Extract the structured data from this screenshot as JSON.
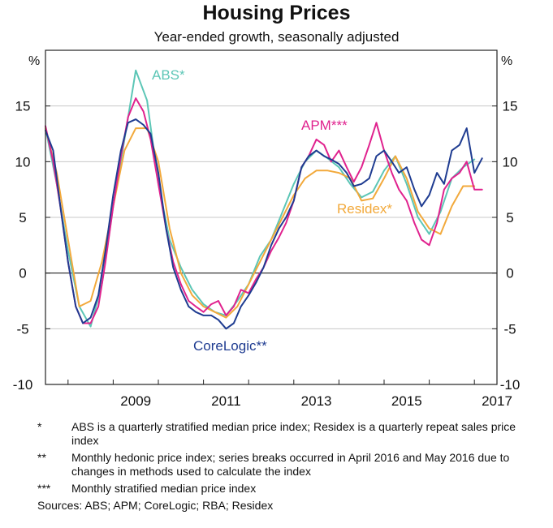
{
  "chart_data": {
    "type": "line",
    "title": "Housing Prices",
    "subtitle": "Year-ended growth, seasonally adjusted",
    "ylabel_left": "%",
    "ylabel_right": "%",
    "ylim": [
      -10,
      20
    ],
    "yticks": [
      -10,
      -5,
      0,
      5,
      10,
      15
    ],
    "xlim": [
      2007.5,
      2017.5
    ],
    "xticks": [
      "2009",
      "2011",
      "2013",
      "2015",
      "2017"
    ],
    "grid": true,
    "series": [
      {
        "name": "ABS*",
        "color": "#5cc6b6",
        "x": [
          2007.5,
          2007.75,
          2008.0,
          2008.25,
          2008.5,
          2008.75,
          2009.0,
          2009.25,
          2009.5,
          2009.75,
          2010.0,
          2010.25,
          2010.5,
          2010.75,
          2011.0,
          2011.25,
          2011.5,
          2011.75,
          2012.0,
          2012.25,
          2012.5,
          2012.75,
          2013.0,
          2013.25,
          2013.5,
          2013.75,
          2014.0,
          2014.25,
          2014.5,
          2014.75,
          2015.0,
          2015.25,
          2015.5,
          2015.75,
          2016.0,
          2016.25,
          2016.5,
          2016.75,
          2017.0
        ],
        "y": [
          13,
          8,
          2,
          -3,
          -4.8,
          -1,
          6,
          12,
          18.2,
          15.5,
          8,
          3,
          0.5,
          -1.5,
          -2.8,
          -3.5,
          -3.8,
          -2.5,
          -1,
          1.5,
          3,
          5.5,
          8,
          10,
          11,
          10.3,
          9.5,
          8,
          6.8,
          7.3,
          9.2,
          10.5,
          8,
          5,
          3.5,
          5.5,
          8.5,
          9.5,
          10.2
        ]
      },
      {
        "name": "Residex*",
        "color": "#f2a93b",
        "x": [
          2007.5,
          2007.75,
          2008.0,
          2008.25,
          2008.5,
          2008.75,
          2009.0,
          2009.25,
          2009.5,
          2009.75,
          2010.0,
          2010.25,
          2010.5,
          2010.75,
          2011.0,
          2011.25,
          2011.5,
          2011.75,
          2012.0,
          2012.25,
          2012.5,
          2012.75,
          2013.0,
          2013.25,
          2013.5,
          2013.75,
          2014.0,
          2014.25,
          2014.5,
          2014.75,
          2015.0,
          2015.25,
          2015.5,
          2015.75,
          2016.0,
          2016.25,
          2016.5,
          2016.75,
          2017.0
        ],
        "y": [
          13,
          9,
          3,
          -3,
          -2.5,
          1,
          6,
          11,
          13,
          13,
          10,
          4,
          0,
          -2,
          -3,
          -3.5,
          -4,
          -3,
          -1,
          1,
          3,
          5,
          7,
          8.5,
          9.2,
          9.2,
          9,
          8.5,
          6.5,
          6.7,
          8.5,
          10.5,
          8.5,
          5.5,
          4,
          3.5,
          6,
          7.8,
          7.8
        ]
      },
      {
        "name": "APM***",
        "color": "#e0228e",
        "x": [
          2007.5,
          2007.67,
          2007.83,
          2008.0,
          2008.17,
          2008.33,
          2008.5,
          2008.67,
          2008.83,
          2009.0,
          2009.17,
          2009.33,
          2009.5,
          2009.67,
          2009.83,
          2010.0,
          2010.17,
          2010.33,
          2010.5,
          2010.67,
          2010.83,
          2011.0,
          2011.17,
          2011.33,
          2011.5,
          2011.67,
          2011.83,
          2012.0,
          2012.17,
          2012.33,
          2012.5,
          2012.67,
          2012.83,
          2013.0,
          2013.17,
          2013.33,
          2013.5,
          2013.67,
          2013.83,
          2014.0,
          2014.17,
          2014.33,
          2014.5,
          2014.67,
          2014.83,
          2015.0,
          2015.17,
          2015.33,
          2015.5,
          2015.67,
          2015.83,
          2016.0,
          2016.17,
          2016.33,
          2016.5,
          2016.67,
          2016.83,
          2017.0,
          2017.17
        ],
        "y": [
          13.2,
          10,
          6,
          1,
          -3,
          -4.5,
          -4.5,
          -3,
          1,
          6,
          10.5,
          14,
          15.7,
          14.5,
          12,
          8,
          4,
          1,
          -1,
          -2.5,
          -3,
          -3.5,
          -2.8,
          -2.5,
          -3.8,
          -3,
          -1.5,
          -1.8,
          -0.5,
          0.5,
          2,
          3.2,
          4.5,
          6.5,
          9.5,
          10.5,
          12,
          11.5,
          10,
          11,
          9.5,
          8.2,
          9.5,
          11.5,
          13.5,
          11,
          9,
          7.5,
          6.5,
          4.5,
          3,
          2.5,
          4.5,
          7.5,
          8.5,
          9,
          10,
          7.5,
          7.5
        ]
      },
      {
        "name": "CoreLogic**",
        "color": "#1f3c91",
        "x": [
          2007.5,
          2007.67,
          2007.83,
          2008.0,
          2008.17,
          2008.33,
          2008.5,
          2008.67,
          2008.83,
          2009.0,
          2009.17,
          2009.33,
          2009.5,
          2009.67,
          2009.83,
          2010.0,
          2010.17,
          2010.33,
          2010.5,
          2010.67,
          2010.83,
          2011.0,
          2011.17,
          2011.33,
          2011.5,
          2011.67,
          2011.83,
          2012.0,
          2012.17,
          2012.33,
          2012.5,
          2012.67,
          2012.83,
          2013.0,
          2013.17,
          2013.33,
          2013.5,
          2013.67,
          2013.83,
          2014.0,
          2014.17,
          2014.33,
          2014.5,
          2014.67,
          2014.83,
          2015.0,
          2015.17,
          2015.33,
          2015.5,
          2015.67,
          2015.83,
          2016.0,
          2016.17,
          2016.33,
          2016.5,
          2016.67,
          2016.83,
          2017.0,
          2017.17
        ],
        "y": [
          12.8,
          11,
          6,
          1,
          -3,
          -4.5,
          -4,
          -2,
          2,
          7,
          11,
          13.5,
          13.8,
          13.3,
          12.5,
          9,
          4,
          0.5,
          -1.5,
          -3,
          -3.5,
          -3.8,
          -3.8,
          -4.2,
          -5,
          -4.5,
          -3,
          -2,
          -0.8,
          0.5,
          2.5,
          4,
          5,
          6.5,
          9.5,
          10.5,
          11,
          10.5,
          10.2,
          9.8,
          9,
          7.8,
          8,
          8.5,
          10.5,
          11,
          10,
          9,
          9.5,
          7.5,
          6,
          7,
          9,
          8,
          11,
          11.5,
          13,
          9,
          10.3
        ]
      }
    ],
    "annotations": [
      {
        "text": "ABS*",
        "color": "#5cc6b6"
      },
      {
        "text": "APM***",
        "color": "#e0228e"
      },
      {
        "text": "Residex*",
        "color": "#f2a93b"
      },
      {
        "text": "CoreLogic**",
        "color": "#1f3c91"
      }
    ]
  },
  "footnotes": [
    {
      "mark": "*",
      "text": "ABS is a quarterly stratified median price index; Residex is a quarterly repeat sales price index"
    },
    {
      "mark": "**",
      "text": "Monthly hedonic price index; series breaks occurred in April 2016 and May 2016 due to changes in methods used to calculate the index"
    },
    {
      "mark": "***",
      "text": "Monthly stratified median price index"
    }
  ],
  "sources": "Sources: ABS; APM; CoreLogic; RBA; Residex"
}
